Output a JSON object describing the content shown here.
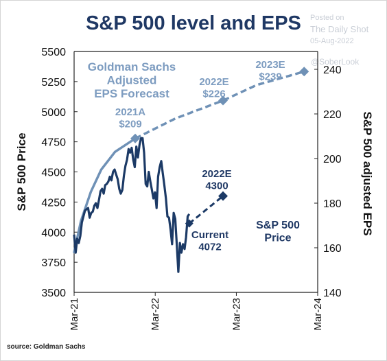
{
  "title": "S&P 500 level and EPS",
  "watermark": {
    "line1": "Posted on",
    "line2": "The Daily Shot",
    "line3": "05-Aug-2022",
    "handle": "@SoberLook"
  },
  "source": "source: Goldman Sachs",
  "colors": {
    "title": "#1f3864",
    "price_line": "#1c3a66",
    "eps_line": "#6f91b6",
    "eps_label": "#7d9cc0",
    "dark_label": "#1f3864"
  },
  "chart_data": {
    "type": "line",
    "title": "S&P 500 level and EPS",
    "x_ticks": [
      "Mar-21",
      "Mar-22",
      "Mar-23",
      "Mar-24"
    ],
    "xlim": [
      "Mar-21",
      "Mar-24"
    ],
    "ylabel_left": "S&P 500 Price",
    "ylabel_right": "S&P 500 adjusted EPS",
    "yleft_ticks": [
      3500,
      3750,
      4000,
      4250,
      4500,
      4750,
      5000,
      5250,
      5500
    ],
    "yleft_lim": [
      3500,
      5500
    ],
    "yright_ticks": [
      140,
      160,
      180,
      200,
      220,
      240
    ],
    "yright_lim": [
      140,
      248
    ],
    "annotations": {
      "eps_forecast": "Goldman Sachs\nAdjusted\nEPS Forecast",
      "eps_2021": "2021A\n$209",
      "eps_2022": "2022E\n$226",
      "eps_2023": "2023E\n$239",
      "price_target": "2022E\n4300",
      "price_current": "Current\n4072",
      "price_series": "S&P 500\nPrice"
    },
    "series": [
      {
        "name": "S&P 500 Price",
        "axis": "left",
        "style": "solid",
        "points": [
          [
            "2021-03-01",
            3980
          ],
          [
            "2021-03-08",
            3830
          ],
          [
            "2021-03-15",
            3945
          ],
          [
            "2021-03-22",
            3910
          ],
          [
            "2021-03-29",
            3970
          ],
          [
            "2021-04-05",
            4080
          ],
          [
            "2021-04-12",
            4130
          ],
          [
            "2021-04-19",
            4180
          ],
          [
            "2021-04-26",
            4190
          ],
          [
            "2021-05-03",
            4200
          ],
          [
            "2021-05-10",
            4120
          ],
          [
            "2021-05-17",
            4160
          ],
          [
            "2021-05-24",
            4170
          ],
          [
            "2021-05-31",
            4220
          ],
          [
            "2021-06-07",
            4240
          ],
          [
            "2021-06-14",
            4200
          ],
          [
            "2021-06-21",
            4270
          ],
          [
            "2021-06-28",
            4340
          ],
          [
            "2021-07-05",
            4360
          ],
          [
            "2021-07-12",
            4320
          ],
          [
            "2021-07-19",
            4390
          ],
          [
            "2021-07-26",
            4400
          ],
          [
            "2021-08-02",
            4420
          ],
          [
            "2021-08-09",
            4460
          ],
          [
            "2021-08-16",
            4430
          ],
          [
            "2021-08-23",
            4500
          ],
          [
            "2021-08-30",
            4520
          ],
          [
            "2021-09-06",
            4480
          ],
          [
            "2021-09-13",
            4440
          ],
          [
            "2021-09-20",
            4360
          ],
          [
            "2021-09-27",
            4320
          ],
          [
            "2021-10-04",
            4350
          ],
          [
            "2021-10-11",
            4470
          ],
          [
            "2021-10-18",
            4550
          ],
          [
            "2021-10-25",
            4600
          ],
          [
            "2021-11-01",
            4690
          ],
          [
            "2021-11-08",
            4660
          ],
          [
            "2021-11-15",
            4700
          ],
          [
            "2021-11-22",
            4600
          ],
          [
            "2021-11-29",
            4540
          ],
          [
            "2021-12-06",
            4710
          ],
          [
            "2021-12-13",
            4620
          ],
          [
            "2021-12-20",
            4720
          ],
          [
            "2021-12-27",
            4780
          ],
          [
            "2022-01-03",
            4780
          ],
          [
            "2022-01-10",
            4660
          ],
          [
            "2022-01-17",
            4400
          ],
          [
            "2022-01-24",
            4380
          ],
          [
            "2022-01-31",
            4500
          ],
          [
            "2022-02-07",
            4420
          ],
          [
            "2022-02-14",
            4350
          ],
          [
            "2022-02-21",
            4280
          ],
          [
            "2022-02-28",
            4330
          ],
          [
            "2022-03-07",
            4200
          ],
          [
            "2022-03-14",
            4460
          ],
          [
            "2022-03-21",
            4540
          ],
          [
            "2022-03-28",
            4590
          ],
          [
            "2022-04-04",
            4490
          ],
          [
            "2022-04-11",
            4390
          ],
          [
            "2022-04-18",
            4280
          ],
          [
            "2022-04-25",
            4130
          ],
          [
            "2022-05-02",
            4120
          ],
          [
            "2022-05-09",
            4020
          ],
          [
            "2022-05-16",
            3900
          ],
          [
            "2022-05-23",
            4160
          ],
          [
            "2022-05-30",
            4110
          ],
          [
            "2022-06-06",
            3900
          ],
          [
            "2022-06-13",
            3670
          ],
          [
            "2022-06-20",
            3910
          ],
          [
            "2022-06-27",
            3830
          ],
          [
            "2022-07-04",
            3900
          ],
          [
            "2022-07-11",
            3860
          ],
          [
            "2022-07-18",
            3960
          ],
          [
            "2022-07-25",
            4130
          ],
          [
            "2022-08-01",
            4150
          ]
        ]
      },
      {
        "name": "S&P 500 Price 2022E",
        "axis": "left",
        "style": "dashed",
        "points": [
          [
            "2022-08-01",
            4072
          ],
          [
            "2022-12-31",
            4300
          ]
        ]
      },
      {
        "name": "Goldman Sachs Adjusted EPS",
        "axis": "right",
        "style": "solid",
        "points": [
          [
            "2021-03-01",
            158
          ],
          [
            "2021-04-01",
            172
          ],
          [
            "2021-05-15",
            185
          ],
          [
            "2021-07-01",
            195
          ],
          [
            "2021-09-01",
            203
          ],
          [
            "2021-12-01",
            209
          ]
        ]
      },
      {
        "name": "Goldman Sachs Adjusted EPS Forecast",
        "axis": "right",
        "style": "dashed",
        "points": [
          [
            "2021-12-01",
            209
          ],
          [
            "2022-06-01",
            218
          ],
          [
            "2022-12-31",
            226
          ],
          [
            "2023-06-01",
            233
          ],
          [
            "2023-12-31",
            239
          ]
        ]
      }
    ]
  }
}
